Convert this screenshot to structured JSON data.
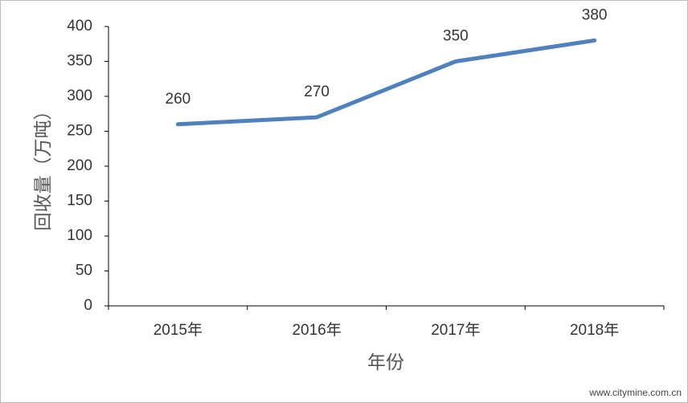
{
  "chart_data": {
    "type": "line",
    "categories": [
      "2015年",
      "2016年",
      "2017年",
      "2018年"
    ],
    "values": [
      260,
      270,
      350,
      380
    ],
    "color": "#4f81bd",
    "x_label": "年份",
    "y_label": "回收量（万吨）",
    "ylim": [
      0,
      400
    ],
    "yticks": [
      0,
      50,
      100,
      150,
      200,
      250,
      300,
      350,
      400
    ],
    "grid": false,
    "data_labels": true
  },
  "watermark": "www.citymine.com.cn"
}
